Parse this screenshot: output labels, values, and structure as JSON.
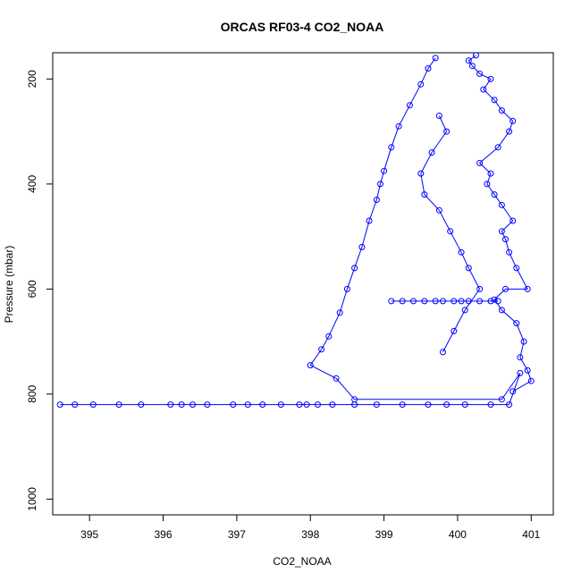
{
  "chart_data": {
    "type": "scatter",
    "title": "ORCAS RF03-4 CO2_NOAA",
    "xlabel": "CO2_NOAA",
    "ylabel": "Pressure (mbar)",
    "xlim": [
      394.5,
      401.3
    ],
    "ylim": [
      150,
      1030
    ],
    "y_reversed": true,
    "x_ticks": [
      395,
      396,
      397,
      398,
      399,
      400,
      401
    ],
    "y_ticks": [
      200,
      400,
      600,
      800,
      1000
    ],
    "grid": false,
    "colors": {
      "series": "#0000ff",
      "axes": "#000000",
      "background": "#ffffff"
    },
    "series": [
      {
        "line": true,
        "marker": "open-circle",
        "x": [
          394.6,
          394.8,
          395.05,
          395.4,
          395.7,
          396.1,
          396.25,
          396.4,
          396.6,
          396.95,
          397.15,
          397.35,
          397.6,
          397.85,
          397.95,
          398.1,
          398.3,
          398.6,
          398.9,
          399.25,
          399.6,
          399.85,
          400.1,
          400.45,
          400.7,
          400.85,
          400.6,
          398.6,
          398.35,
          398.0,
          398.15,
          398.25,
          398.4,
          398.5,
          398.6,
          398.7,
          398.8,
          398.9,
          398.95,
          399.0,
          399.1,
          399.2,
          399.35,
          399.5,
          399.6,
          399.7
        ],
        "y": [
          820,
          820,
          820,
          820,
          820,
          820,
          820,
          820,
          820,
          820,
          820,
          820,
          820,
          820,
          820,
          820,
          820,
          820,
          820,
          820,
          820,
          820,
          820,
          820,
          820,
          760,
          810,
          810,
          770,
          745,
          715,
          690,
          645,
          600,
          560,
          520,
          470,
          430,
          400,
          375,
          330,
          290,
          250,
          210,
          180,
          160
        ]
      },
      {
        "line": true,
        "marker": "open-circle",
        "x": [
          400.75,
          401.0,
          400.95,
          400.85,
          400.9,
          400.8,
          400.6,
          400.5,
          400.65,
          400.95,
          400.8,
          400.7,
          400.65,
          400.6,
          400.75,
          400.6,
          400.5,
          400.4,
          400.45,
          400.3,
          400.55,
          400.7,
          400.75,
          400.6,
          400.5,
          400.35,
          400.45,
          400.3,
          400.2,
          400.15,
          400.25
        ],
        "y": [
          795,
          775,
          755,
          730,
          700,
          665,
          640,
          620,
          600,
          600,
          560,
          530,
          505,
          490,
          470,
          440,
          420,
          400,
          380,
          360,
          330,
          300,
          280,
          260,
          240,
          220,
          200,
          190,
          175,
          165,
          155
        ]
      },
      {
        "line": true,
        "marker": "open-circle",
        "x": [
          399.1,
          399.25,
          399.4,
          399.55,
          399.7,
          399.8,
          399.95,
          400.05,
          400.15,
          400.3,
          400.45,
          400.55
        ],
        "y": [
          623,
          623,
          623,
          623,
          623,
          623,
          623,
          623,
          623,
          623,
          623,
          623
        ]
      },
      {
        "line": true,
        "marker": "open-circle",
        "x": [
          399.75,
          399.85,
          399.65,
          399.5,
          399.55,
          399.75,
          399.9,
          400.05,
          400.15,
          400.3,
          400.1,
          399.95,
          399.8
        ],
        "y": [
          270,
          300,
          340,
          380,
          420,
          450,
          490,
          530,
          560,
          600,
          640,
          680,
          720
        ]
      }
    ]
  }
}
